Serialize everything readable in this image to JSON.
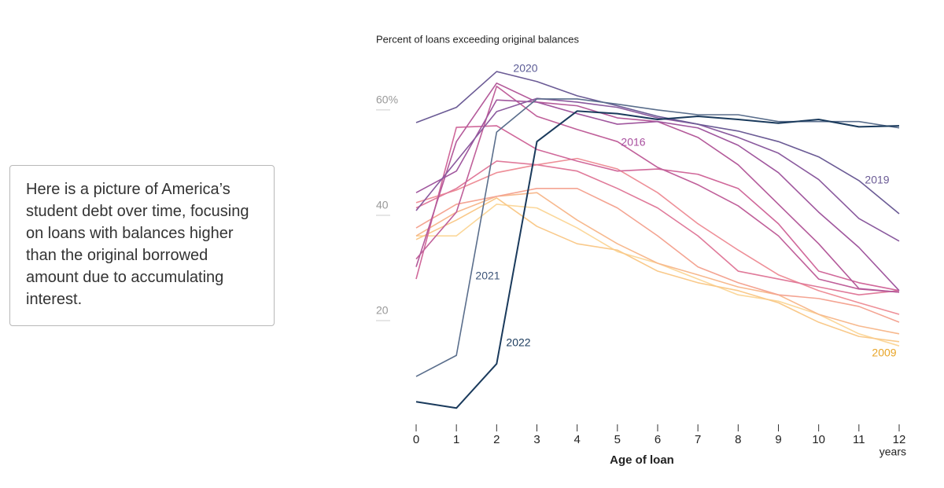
{
  "annotation": "Here is a picture of America’s student debt over time, focusing on loans with balances higher than the original borrowed amount due to accumulating interest.",
  "chart_data": {
    "type": "line",
    "y_label": "Percent of loans exceeding original balances",
    "x_label": "Age of loan",
    "x_unit": "years",
    "x": [
      0,
      1,
      2,
      3,
      4,
      5,
      6,
      7,
      8,
      9,
      10,
      11,
      12
    ],
    "xlim": [
      0,
      12
    ],
    "xticks": [
      0,
      1,
      2,
      3,
      4,
      5,
      6,
      7,
      8,
      9,
      10,
      11,
      12
    ],
    "ylim": [
      -1,
      67
    ],
    "yticks": [
      {
        "value": 60,
        "label": "60%"
      },
      40,
      20
    ],
    "grid": false,
    "series": [
      {
        "name": "2009",
        "color": "#fbd79a",
        "values": [
          34.3,
          34.3,
          40.3,
          39.6,
          35.8,
          31.3,
          29.1,
          26.1,
          23.1,
          21.9,
          19.4,
          15.7,
          13.4
        ]
      },
      {
        "color": "#f9c98a",
        "values": [
          33.6,
          37.3,
          41.5,
          36.1,
          32.8,
          31.6,
          27.6,
          25.4,
          23.9,
          21.6,
          17.9,
          15.2,
          14.2
        ]
      },
      {
        "color": "#f7b98e",
        "values": [
          34.3,
          38.8,
          41.8,
          42.5,
          37.3,
          32.8,
          29.1,
          26.9,
          24.6,
          23.1,
          19.4,
          17.2,
          15.7
        ]
      },
      {
        "color": "#f4a492",
        "values": [
          35.8,
          40.3,
          41.8,
          43.3,
          43.3,
          39.6,
          34.3,
          28.4,
          25.4,
          23.1,
          22.4,
          20.9,
          17.9
        ]
      },
      {
        "color": "#ee8f98",
        "values": [
          40.6,
          43,
          46.3,
          47.8,
          49,
          47,
          42.5,
          36.6,
          31.6,
          26.9,
          23.9,
          21.6,
          19.4
        ]
      },
      {
        "color": "#e07a9a",
        "values": [
          39.6,
          43.3,
          48.5,
          47.8,
          46.6,
          43.3,
          39.6,
          34.3,
          27.6,
          26.1,
          24.6,
          23.1,
          23.9
        ]
      },
      {
        "color": "#d0689a",
        "values": [
          26.1,
          54.9,
          55.2,
          50.7,
          48.5,
          46.6,
          47,
          46,
          43.3,
          36.6,
          27.6,
          25.4,
          23.9
        ]
      },
      {
        "name": "2016",
        "color": "#c0609a",
        "values": [
          29.9,
          38.8,
          62.7,
          57,
          54.5,
          52.2,
          47.3,
          44,
          40,
          34.3,
          26.1,
          24.2,
          23.6
        ]
      },
      {
        "color": "#b45a9a",
        "values": [
          28.4,
          52.2,
          63.3,
          59.7,
          59,
          56.7,
          56,
          53,
          47.8,
          40.3,
          32.8,
          24.3,
          23.6
        ]
      },
      {
        "color": "#a0579e",
        "values": [
          42.5,
          46.6,
          60.1,
          59.7,
          57.5,
          55.5,
          56,
          54.8,
          51.5,
          46.3,
          38.8,
          32.1,
          23.9
        ]
      },
      {
        "name": "2019",
        "color": "#8a5a9e",
        "values": [
          39.1,
          48.5,
          57.9,
          60.4,
          59.7,
          58.7,
          56.7,
          55.5,
          53,
          50,
          45,
          37.6,
          33.3
        ]
      },
      {
        "name": "2020",
        "color": "#6b5b95",
        "values": [
          55.8,
          58.7,
          65.5,
          63.6,
          60.9,
          59,
          57,
          55.5,
          54.2,
          52.2,
          49.3,
          44.8,
          38.5
        ]
      },
      {
        "name": "2021",
        "color": "#5a6e8c",
        "values": [
          7.6,
          11.6,
          54,
          60.3,
          60.3,
          59.3,
          58.2,
          57.3,
          57.3,
          56,
          56,
          56,
          54.8
        ]
      },
      {
        "name": "2022",
        "color": "#1a3a5c",
        "values": [
          2.8,
          1.6,
          10,
          52.2,
          58,
          57.5,
          56.4,
          57,
          56.4,
          55.7,
          56.4,
          55,
          55.2
        ]
      }
    ]
  }
}
